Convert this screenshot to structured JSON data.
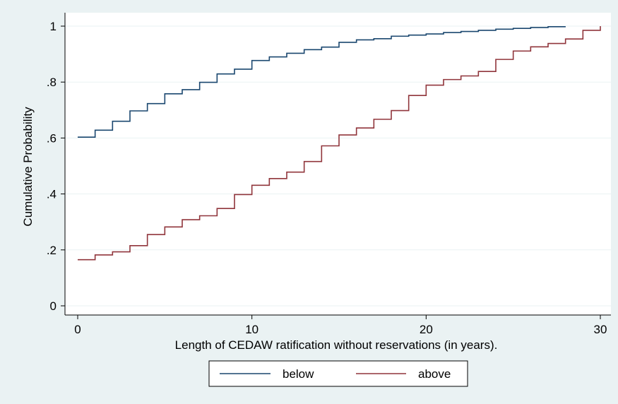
{
  "chart_data": {
    "type": "line",
    "step": true,
    "title": "",
    "xlabel": "Length of CEDAW ratification without reservations (in years).",
    "ylabel": "Cumulative Probability",
    "xlim": [
      0,
      30
    ],
    "ylim": [
      0,
      1
    ],
    "x_ticks": [
      0,
      10,
      20,
      30
    ],
    "x_tick_labels": [
      "0",
      "10",
      "20",
      "30"
    ],
    "y_ticks": [
      0,
      0.2,
      0.4,
      0.6,
      0.8,
      1
    ],
    "y_tick_labels": [
      "0",
      ".2",
      ".4",
      ".6",
      ".8",
      "1"
    ],
    "grid": true,
    "legend_position": "bottom",
    "series": [
      {
        "name": "below",
        "color": "#1a476f",
        "x": [
          0,
          1,
          2,
          3,
          4,
          5,
          6,
          7,
          8,
          9,
          10,
          11,
          12,
          13,
          14,
          15,
          16,
          17,
          18,
          19,
          20,
          21,
          22,
          23,
          24,
          25,
          26,
          27,
          28
        ],
        "y": [
          0.603,
          0.628,
          0.66,
          0.697,
          0.723,
          0.758,
          0.773,
          0.799,
          0.829,
          0.846,
          0.877,
          0.89,
          0.903,
          0.916,
          0.925,
          0.942,
          0.951,
          0.955,
          0.964,
          0.968,
          0.972,
          0.977,
          0.981,
          0.985,
          0.989,
          0.992,
          0.995,
          0.998,
          0.998
        ]
      },
      {
        "name": "above",
        "color": "#90353b",
        "x": [
          0,
          1,
          2,
          3,
          4,
          5,
          6,
          7,
          8,
          9,
          10,
          11,
          12,
          13,
          14,
          15,
          16,
          17,
          18,
          19,
          20,
          21,
          22,
          23,
          24,
          25,
          26,
          27,
          28,
          29,
          30
        ],
        "y": [
          0.165,
          0.182,
          0.193,
          0.215,
          0.255,
          0.282,
          0.308,
          0.322,
          0.348,
          0.398,
          0.431,
          0.455,
          0.478,
          0.516,
          0.572,
          0.611,
          0.636,
          0.667,
          0.698,
          0.752,
          0.789,
          0.809,
          0.822,
          0.838,
          0.881,
          0.911,
          0.926,
          0.938,
          0.954,
          0.985,
          1.0
        ]
      }
    ]
  }
}
